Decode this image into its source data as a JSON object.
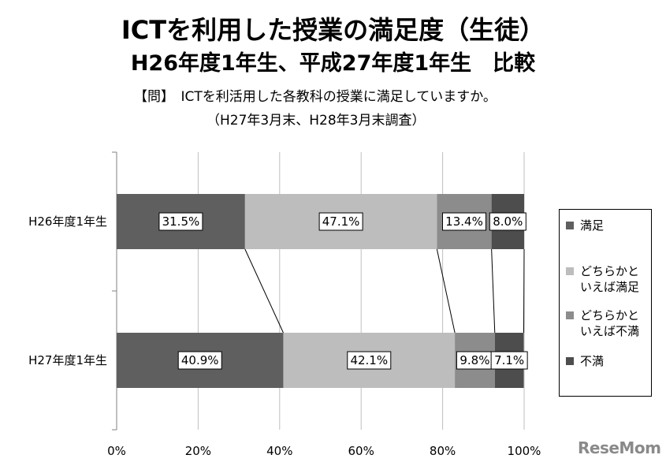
{
  "title_line1": "ICTを利用した授業の満足度（生徒）",
  "title_line2": "H26年度1年生、平成27年度1年生　比較",
  "question": "【問】　ICTを利活用した各教科の授業に満足していますか。",
  "period": "（H27年3月末、H28年3月末調査）",
  "logo": "ReseMom",
  "chart_data": {
    "type": "bar",
    "orientation": "horizontal",
    "stacked": "percent",
    "categories": [
      "H26年度1年生",
      "H27年度1年生"
    ],
    "series": [
      {
        "name": "満足",
        "values": [
          31.5,
          40.9
        ],
        "labels": [
          "31.5%",
          "40.9%"
        ],
        "color": "#5f5f5f"
      },
      {
        "name": "どちらかといえば満足",
        "values": [
          47.1,
          42.1
        ],
        "labels": [
          "47.1%",
          "42.1%"
        ],
        "color": "#bdbdbd"
      },
      {
        "name": "どちらかといえば不満",
        "values": [
          13.4,
          9.8
        ],
        "labels": [
          "13.4%",
          "9.8%"
        ],
        "color": "#8c8c8c"
      },
      {
        "name": "不満",
        "values": [
          8.0,
          7.1
        ],
        "labels": [
          "8.0%",
          "7.1%"
        ],
        "color": "#4d4d4d"
      }
    ],
    "legend": [
      "満足",
      "どちらかといえば満足",
      "どちらかといえば不満",
      "不満"
    ],
    "legend_lines": [
      [
        "満足"
      ],
      [
        "どちらかと",
        "いえば満足"
      ],
      [
        "どちらかと",
        "いえば不満"
      ],
      [
        "不満"
      ]
    ],
    "x_ticks": [
      "0%",
      "20%",
      "40%",
      "60%",
      "80%",
      "100%"
    ],
    "xlim": [
      0,
      100
    ],
    "grid": true,
    "legend_position": "right"
  }
}
